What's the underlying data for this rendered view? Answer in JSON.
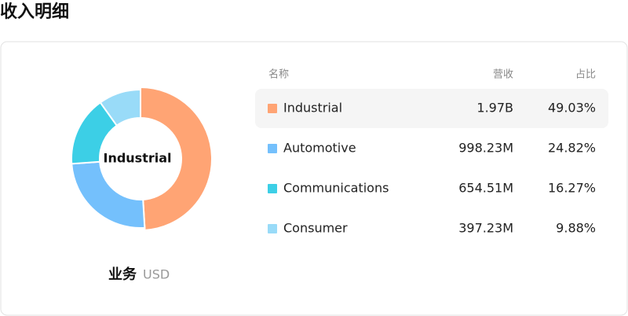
{
  "chart_data": {
    "type": "pie",
    "title": "收入明细",
    "center_label": "Industrial",
    "subtitle": "业务",
    "unit": "USD",
    "columns": [
      "名称",
      "营收",
      "占比"
    ],
    "categories": [
      "Industrial",
      "Automotive",
      "Communications",
      "Consumer"
    ],
    "colors": [
      "#ffa474",
      "#74c0fc",
      "#3ccfe6",
      "#99dbf8"
    ],
    "revenue": [
      "1.97B",
      "998.23M",
      "654.51M",
      "397.23M"
    ],
    "values": [
      49.03,
      24.82,
      16.27,
      9.88
    ],
    "value_labels": [
      "49.03%",
      "24.82%",
      "16.27%",
      "9.88%"
    ],
    "highlight": 0
  }
}
